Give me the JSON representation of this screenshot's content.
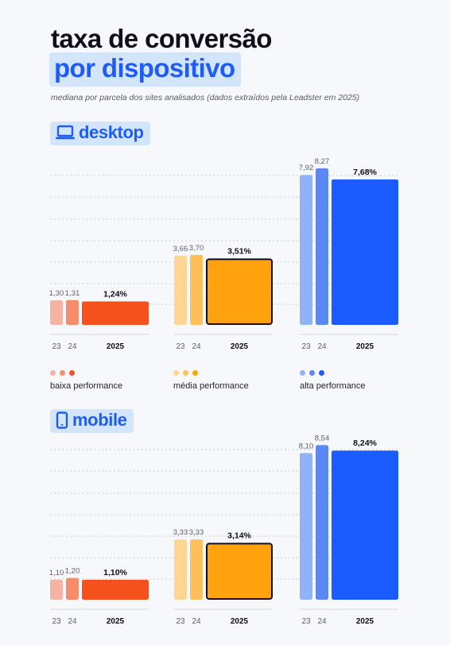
{
  "title_line1": "taxa de conversão",
  "title_line2": "por dispositivo",
  "subtitle": "mediana por parcela dos sites analisados (dados extraídos pela Leadster em 2025)",
  "colors": {
    "baixa": [
      "#f5b3a4",
      "#f58d6c",
      "#f5511c"
    ],
    "media": [
      "#ffd595",
      "#ffbf5c",
      "#ffa20e"
    ],
    "alta": [
      "#8fb2f8",
      "#5a89f7",
      "#1a5cff"
    ]
  },
  "legend": [
    {
      "label": "baixa performance",
      "group": "baixa"
    },
    {
      "label": "média performance",
      "group": "media"
    },
    {
      "label": "alta performance",
      "group": "alta"
    }
  ],
  "chart_data": [
    {
      "type": "bar",
      "title": "desktop",
      "icon": "laptop-icon",
      "categories": [
        "23",
        "24",
        "2025"
      ],
      "ylim": [
        0,
        9
      ],
      "grid": true,
      "groups": [
        {
          "name": "baixa performance",
          "key": "baixa",
          "values": [
            1.3,
            1.31,
            1.24
          ],
          "labels": [
            "1,30",
            "1,31",
            "1,24%"
          ]
        },
        {
          "name": "média performance",
          "key": "media",
          "values": [
            3.66,
            3.7,
            3.51
          ],
          "labels": [
            "3,66",
            "3,70",
            "3,51%"
          ]
        },
        {
          "name": "alta performance",
          "key": "alta",
          "values": [
            7.92,
            8.27,
            7.68
          ],
          "labels": [
            "7,92",
            "8,27",
            "7,68%"
          ]
        }
      ]
    },
    {
      "type": "bar",
      "title": "mobile",
      "icon": "smartphone-icon",
      "categories": [
        "23",
        "24",
        "2025"
      ],
      "ylim": [
        0,
        9
      ],
      "grid": true,
      "groups": [
        {
          "name": "baixa performance",
          "key": "baixa",
          "values": [
            1.1,
            1.2,
            1.1
          ],
          "labels": [
            "1,10",
            "1,20",
            "1,10%"
          ]
        },
        {
          "name": "média performance",
          "key": "media",
          "values": [
            3.33,
            3.33,
            3.14
          ],
          "labels": [
            "3,33",
            "3,33",
            "3,14%"
          ]
        },
        {
          "name": "alta performance",
          "key": "alta",
          "values": [
            8.1,
            8.54,
            8.24
          ],
          "labels": [
            "8,10",
            "8,54",
            "8,24%"
          ]
        }
      ]
    }
  ]
}
